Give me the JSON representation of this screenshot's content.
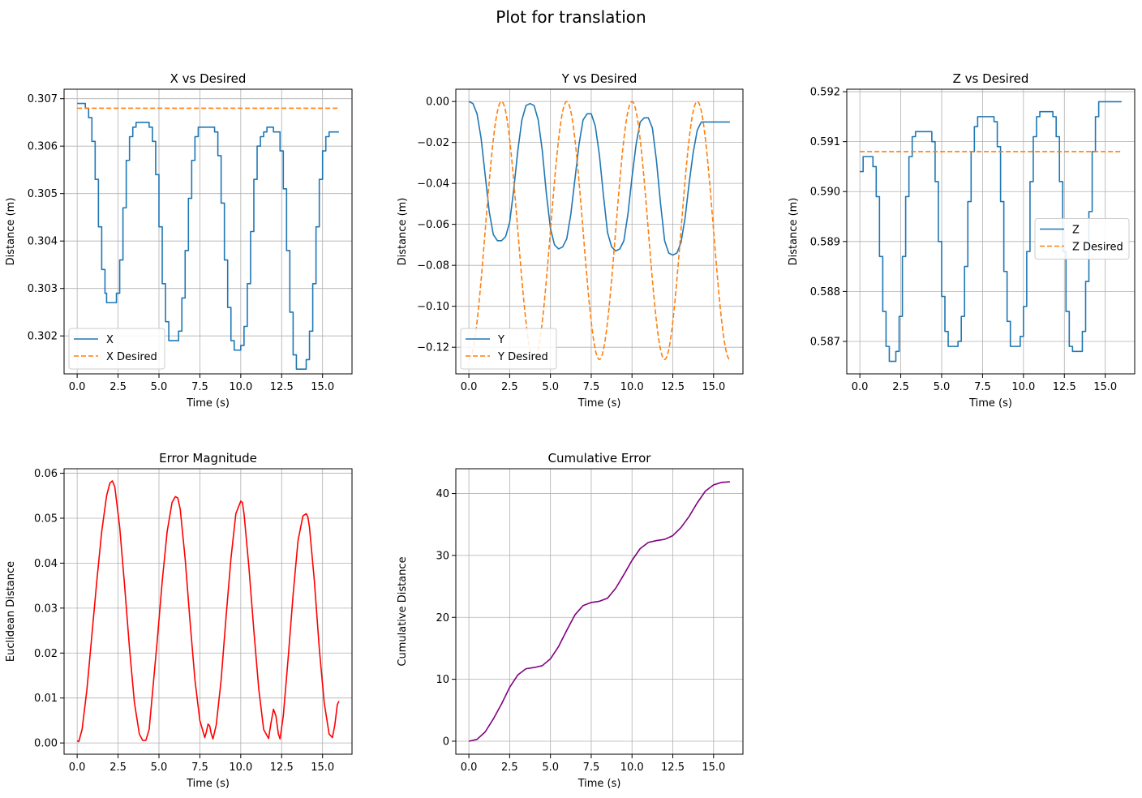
{
  "figure": {
    "suptitle": "Plot for translation"
  },
  "chart_data": [
    {
      "type": "line",
      "title": "X vs Desired",
      "xlabel": "Time (s)",
      "ylabel": "Distance (m)",
      "xlim": [
        -0.8,
        16.8
      ],
      "ylim": [
        0.3012,
        0.3072
      ],
      "xticks": [
        "0.0",
        "2.5",
        "5.0",
        "7.5",
        "10.0",
        "12.5",
        "15.0"
      ],
      "yticks": [
        "0.302",
        "0.303",
        "0.304",
        "0.305",
        "0.306",
        "0.307"
      ],
      "grid": true,
      "legend": {
        "position": "lower-left",
        "entries": [
          "X",
          "X Desired"
        ]
      },
      "series": [
        {
          "name": "X",
          "color": "#1f77b4",
          "dash": false,
          "step": true,
          "x": [
            0,
            0.3,
            0.5,
            0.7,
            0.9,
            1.1,
            1.3,
            1.5,
            1.7,
            1.8,
            2.0,
            2.2,
            2.4,
            2.6,
            2.8,
            3.0,
            3.2,
            3.4,
            3.6,
            3.8,
            4.0,
            4.2,
            4.4,
            4.6,
            4.8,
            5.0,
            5.2,
            5.4,
            5.6,
            5.8,
            6.0,
            6.2,
            6.4,
            6.6,
            6.8,
            7.0,
            7.2,
            7.4,
            7.6,
            7.8,
            8.0,
            8.2,
            8.4,
            8.6,
            8.8,
            9.0,
            9.2,
            9.4,
            9.6,
            9.8,
            10.0,
            10.2,
            10.4,
            10.6,
            10.8,
            11.0,
            11.2,
            11.4,
            11.6,
            11.8,
            12.0,
            12.2,
            12.4,
            12.6,
            12.8,
            13.0,
            13.2,
            13.4,
            13.6,
            13.8,
            14.0,
            14.2,
            14.4,
            14.6,
            14.8,
            15.0,
            15.2,
            15.4,
            15.6,
            15.8,
            16.0
          ],
          "y": [
            0.3069,
            0.3069,
            0.3068,
            0.3066,
            0.3061,
            0.3053,
            0.3043,
            0.3034,
            0.3029,
            0.3027,
            0.3027,
            0.3027,
            0.3029,
            0.3036,
            0.3047,
            0.3057,
            0.3062,
            0.3064,
            0.3065,
            0.3065,
            0.3065,
            0.3065,
            0.3064,
            0.3061,
            0.3054,
            0.3043,
            0.3031,
            0.3023,
            0.3019,
            0.3019,
            0.3019,
            0.3021,
            0.3028,
            0.3038,
            0.3049,
            0.3057,
            0.3062,
            0.3064,
            0.3064,
            0.3064,
            0.3064,
            0.3064,
            0.3063,
            0.3058,
            0.3048,
            0.3036,
            0.3026,
            0.3019,
            0.3017,
            0.3017,
            0.3018,
            0.3022,
            0.3031,
            0.3042,
            0.3053,
            0.306,
            0.3062,
            0.3063,
            0.3064,
            0.3064,
            0.3063,
            0.3063,
            0.3059,
            0.3051,
            0.3038,
            0.3025,
            0.3016,
            0.3013,
            0.3013,
            0.3013,
            0.3015,
            0.3021,
            0.3031,
            0.3043,
            0.3053,
            0.3059,
            0.3062,
            0.3063,
            0.3063,
            0.3063,
            0.3063
          ]
        },
        {
          "name": "X Desired",
          "color": "#ff7f0e",
          "dash": true,
          "step": false,
          "x": [
            0,
            16
          ],
          "y": [
            0.3068,
            0.3068
          ]
        }
      ]
    },
    {
      "type": "line",
      "title": "Y vs Desired",
      "xlabel": "Time (s)",
      "ylabel": "Distance (m)",
      "xlim": [
        -0.8,
        16.8
      ],
      "ylim": [
        -0.133,
        0.006
      ],
      "xticks": [
        "0.0",
        "2.5",
        "5.0",
        "7.5",
        "10.0",
        "12.5",
        "15.0"
      ],
      "yticks": [
        "−0.12",
        "−0.10",
        "−0.08",
        "−0.06",
        "−0.04",
        "−0.02",
        "0.00"
      ],
      "ytick_values": [
        -0.12,
        -0.1,
        -0.08,
        -0.06,
        -0.04,
        -0.02,
        0.0
      ],
      "grid": true,
      "legend": {
        "position": "lower-left",
        "entries": [
          "Y",
          "Y Desired"
        ]
      },
      "series": [
        {
          "name": "Y",
          "color": "#1f77b4",
          "dash": false,
          "step": false,
          "x": [
            0,
            0.25,
            0.5,
            0.75,
            1.0,
            1.25,
            1.5,
            1.75,
            2.0,
            2.25,
            2.5,
            2.75,
            3.0,
            3.25,
            3.5,
            3.75,
            4.0,
            4.25,
            4.5,
            4.75,
            5.0,
            5.25,
            5.5,
            5.75,
            6.0,
            6.25,
            6.5,
            6.75,
            7.0,
            7.25,
            7.5,
            7.75,
            8.0,
            8.25,
            8.5,
            8.75,
            9.0,
            9.25,
            9.5,
            9.75,
            10.0,
            10.25,
            10.5,
            10.75,
            11.0,
            11.25,
            11.5,
            11.75,
            12.0,
            12.25,
            12.5,
            12.75,
            13.0,
            13.25,
            13.5,
            13.75,
            14.0,
            14.25,
            14.5,
            14.75,
            15.0,
            15.25,
            15.5,
            15.75,
            16.0
          ],
          "y": [
            0.0,
            -0.001,
            -0.006,
            -0.018,
            -0.036,
            -0.054,
            -0.065,
            -0.068,
            -0.068,
            -0.066,
            -0.059,
            -0.043,
            -0.024,
            -0.009,
            -0.002,
            -0.001,
            -0.002,
            -0.009,
            -0.024,
            -0.045,
            -0.062,
            -0.07,
            -0.072,
            -0.071,
            -0.067,
            -0.055,
            -0.038,
            -0.021,
            -0.009,
            -0.006,
            -0.006,
            -0.012,
            -0.026,
            -0.046,
            -0.064,
            -0.071,
            -0.073,
            -0.072,
            -0.068,
            -0.055,
            -0.037,
            -0.021,
            -0.01,
            -0.008,
            -0.008,
            -0.013,
            -0.029,
            -0.05,
            -0.068,
            -0.074,
            -0.075,
            -0.074,
            -0.069,
            -0.057,
            -0.04,
            -0.025,
            -0.014,
            -0.01,
            -0.01,
            -0.01,
            -0.01,
            -0.01,
            -0.01,
            -0.01,
            -0.01
          ]
        },
        {
          "name": "Y Desired",
          "color": "#ff7f0e",
          "dash": true,
          "step": false,
          "fn": "cosine",
          "amplitude": -0.063,
          "offset": -0.063,
          "period": 4,
          "x_end": 16
        }
      ]
    },
    {
      "type": "line",
      "title": "Z vs Desired",
      "xlabel": "Time (s)",
      "ylabel": "Distance (m)",
      "xlim": [
        -0.8,
        16.8
      ],
      "ylim": [
        0.58635,
        0.59205
      ],
      "xticks": [
        "0.0",
        "2.5",
        "5.0",
        "7.5",
        "10.0",
        "12.5",
        "15.0"
      ],
      "yticks": [
        "0.587",
        "0.588",
        "0.589",
        "0.590",
        "0.591",
        "0.592"
      ],
      "grid": true,
      "legend": {
        "position": "center-right",
        "entries": [
          "Z",
          "Z Desired"
        ]
      },
      "series": [
        {
          "name": "Z",
          "color": "#1f77b4",
          "dash": false,
          "step": true,
          "x": [
            0,
            0.2,
            0.4,
            0.6,
            0.8,
            1.0,
            1.2,
            1.4,
            1.6,
            1.8,
            2.0,
            2.2,
            2.4,
            2.6,
            2.8,
            3.0,
            3.2,
            3.4,
            3.6,
            3.8,
            4.0,
            4.2,
            4.4,
            4.6,
            4.8,
            5.0,
            5.2,
            5.4,
            5.6,
            5.8,
            6.0,
            6.2,
            6.4,
            6.6,
            6.8,
            7.0,
            7.2,
            7.4,
            7.6,
            7.8,
            8.0,
            8.2,
            8.4,
            8.6,
            8.8,
            9.0,
            9.2,
            9.4,
            9.6,
            9.8,
            10.0,
            10.2,
            10.4,
            10.6,
            10.8,
            11.0,
            11.2,
            11.4,
            11.6,
            11.8,
            12.0,
            12.2,
            12.4,
            12.6,
            12.8,
            13.0,
            13.2,
            13.4,
            13.6,
            13.8,
            14.0,
            14.2,
            14.4,
            14.6,
            14.8,
            15.0,
            15.2,
            15.4,
            15.6,
            15.8,
            16.0
          ],
          "y": [
            0.5904,
            0.5907,
            0.5907,
            0.5907,
            0.5905,
            0.5899,
            0.5887,
            0.5876,
            0.5869,
            0.5866,
            0.5866,
            0.5868,
            0.5875,
            0.5887,
            0.5899,
            0.5907,
            0.5911,
            0.5912,
            0.5912,
            0.5912,
            0.5912,
            0.5912,
            0.591,
            0.5902,
            0.589,
            0.5879,
            0.5872,
            0.5869,
            0.5869,
            0.5869,
            0.587,
            0.5875,
            0.5885,
            0.5898,
            0.5908,
            0.5913,
            0.5915,
            0.5915,
            0.5915,
            0.5915,
            0.5915,
            0.5914,
            0.5909,
            0.5898,
            0.5884,
            0.5874,
            0.5869,
            0.5869,
            0.5869,
            0.5871,
            0.5877,
            0.5888,
            0.5902,
            0.5911,
            0.5915,
            0.5916,
            0.5916,
            0.5916,
            0.5916,
            0.5915,
            0.5911,
            0.5902,
            0.5888,
            0.5876,
            0.5869,
            0.5868,
            0.5868,
            0.5868,
            0.5872,
            0.5882,
            0.5896,
            0.5908,
            0.5915,
            0.5918,
            0.5918,
            0.5918,
            0.5918,
            0.5918,
            0.5918,
            0.5918,
            0.5918
          ]
        },
        {
          "name": "Z Desired",
          "color": "#ff7f0e",
          "dash": true,
          "step": false,
          "x": [
            0,
            16
          ],
          "y": [
            0.5908,
            0.5908
          ]
        }
      ]
    },
    {
      "type": "line",
      "title": "Error Magnitude",
      "xlabel": "Time (s)",
      "ylabel": "Euclidean Distance",
      "xlim": [
        -0.8,
        16.8
      ],
      "ylim": [
        -0.0025,
        0.061
      ],
      "xticks": [
        "0.0",
        "2.5",
        "5.0",
        "7.5",
        "10.0",
        "12.5",
        "15.0"
      ],
      "yticks": [
        "0.00",
        "0.01",
        "0.02",
        "0.03",
        "0.04",
        "0.05",
        "0.06"
      ],
      "grid": true,
      "series": [
        {
          "name": "",
          "color": "#ff0000",
          "dash": false,
          "step": false,
          "x": [
            0,
            0.1,
            0.3,
            0.6,
            0.9,
            1.2,
            1.5,
            1.8,
            2.0,
            2.15,
            2.3,
            2.6,
            2.9,
            3.2,
            3.5,
            3.8,
            4.0,
            4.2,
            4.4,
            4.6,
            4.9,
            5.2,
            5.5,
            5.8,
            6.0,
            6.15,
            6.3,
            6.6,
            6.9,
            7.2,
            7.5,
            7.8,
            7.9,
            8.0,
            8.1,
            8.2,
            8.3,
            8.5,
            8.8,
            9.1,
            9.4,
            9.7,
            10.0,
            10.1,
            10.2,
            10.5,
            10.8,
            11.1,
            11.4,
            11.7,
            11.85,
            12.0,
            12.15,
            12.3,
            12.4,
            12.6,
            12.9,
            13.2,
            13.5,
            13.8,
            14.0,
            14.1,
            14.2,
            14.5,
            14.8,
            15.1,
            15.4,
            15.6,
            15.75,
            15.9,
            16.0
          ],
          "y": [
            0.0005,
            0.0003,
            0.003,
            0.012,
            0.024,
            0.036,
            0.047,
            0.055,
            0.0578,
            0.0583,
            0.057,
            0.048,
            0.035,
            0.021,
            0.009,
            0.002,
            0.0006,
            0.0006,
            0.003,
            0.011,
            0.023,
            0.036,
            0.047,
            0.0535,
            0.0548,
            0.0545,
            0.052,
            0.041,
            0.027,
            0.014,
            0.005,
            0.0012,
            0.0025,
            0.0042,
            0.0038,
            0.002,
            0.0009,
            0.004,
            0.014,
            0.028,
            0.041,
            0.051,
            0.0538,
            0.0535,
            0.051,
            0.039,
            0.025,
            0.012,
            0.003,
            0.001,
            0.0045,
            0.0075,
            0.006,
            0.002,
            0.0009,
            0.006,
            0.019,
            0.033,
            0.045,
            0.0505,
            0.051,
            0.0503,
            0.048,
            0.036,
            0.021,
            0.009,
            0.002,
            0.0012,
            0.004,
            0.0085,
            0.0093
          ]
        }
      ]
    },
    {
      "type": "line",
      "title": "Cumulative Error",
      "xlabel": "Time (s)",
      "ylabel": "Cumulative Distance",
      "xlim": [
        -0.8,
        16.8
      ],
      "ylim": [
        -2.1,
        44.0
      ],
      "xticks": [
        "0.0",
        "2.5",
        "5.0",
        "7.5",
        "10.0",
        "12.5",
        "15.0"
      ],
      "yticks": [
        "0",
        "10",
        "20",
        "30",
        "40"
      ],
      "grid": true,
      "series": [
        {
          "name": "",
          "color": "#800080",
          "dash": false,
          "step": false,
          "x": [
            0,
            0.5,
            1.0,
            1.5,
            2.0,
            2.5,
            3.0,
            3.5,
            4.0,
            4.5,
            5.0,
            5.5,
            6.0,
            6.5,
            7.0,
            7.5,
            8.0,
            8.5,
            9.0,
            9.5,
            10.0,
            10.5,
            11.0,
            11.5,
            12.0,
            12.5,
            13.0,
            13.5,
            14.0,
            14.5,
            15.0,
            15.5,
            16.0
          ],
          "y": [
            0,
            0.3,
            1.5,
            3.6,
            6.0,
            8.7,
            10.7,
            11.7,
            11.9,
            12.2,
            13.3,
            15.3,
            17.9,
            20.4,
            21.9,
            22.4,
            22.6,
            23.1,
            24.7,
            26.9,
            29.2,
            31.1,
            32.1,
            32.4,
            32.6,
            33.2,
            34.5,
            36.3,
            38.5,
            40.4,
            41.4,
            41.8,
            41.9
          ]
        }
      ]
    }
  ]
}
